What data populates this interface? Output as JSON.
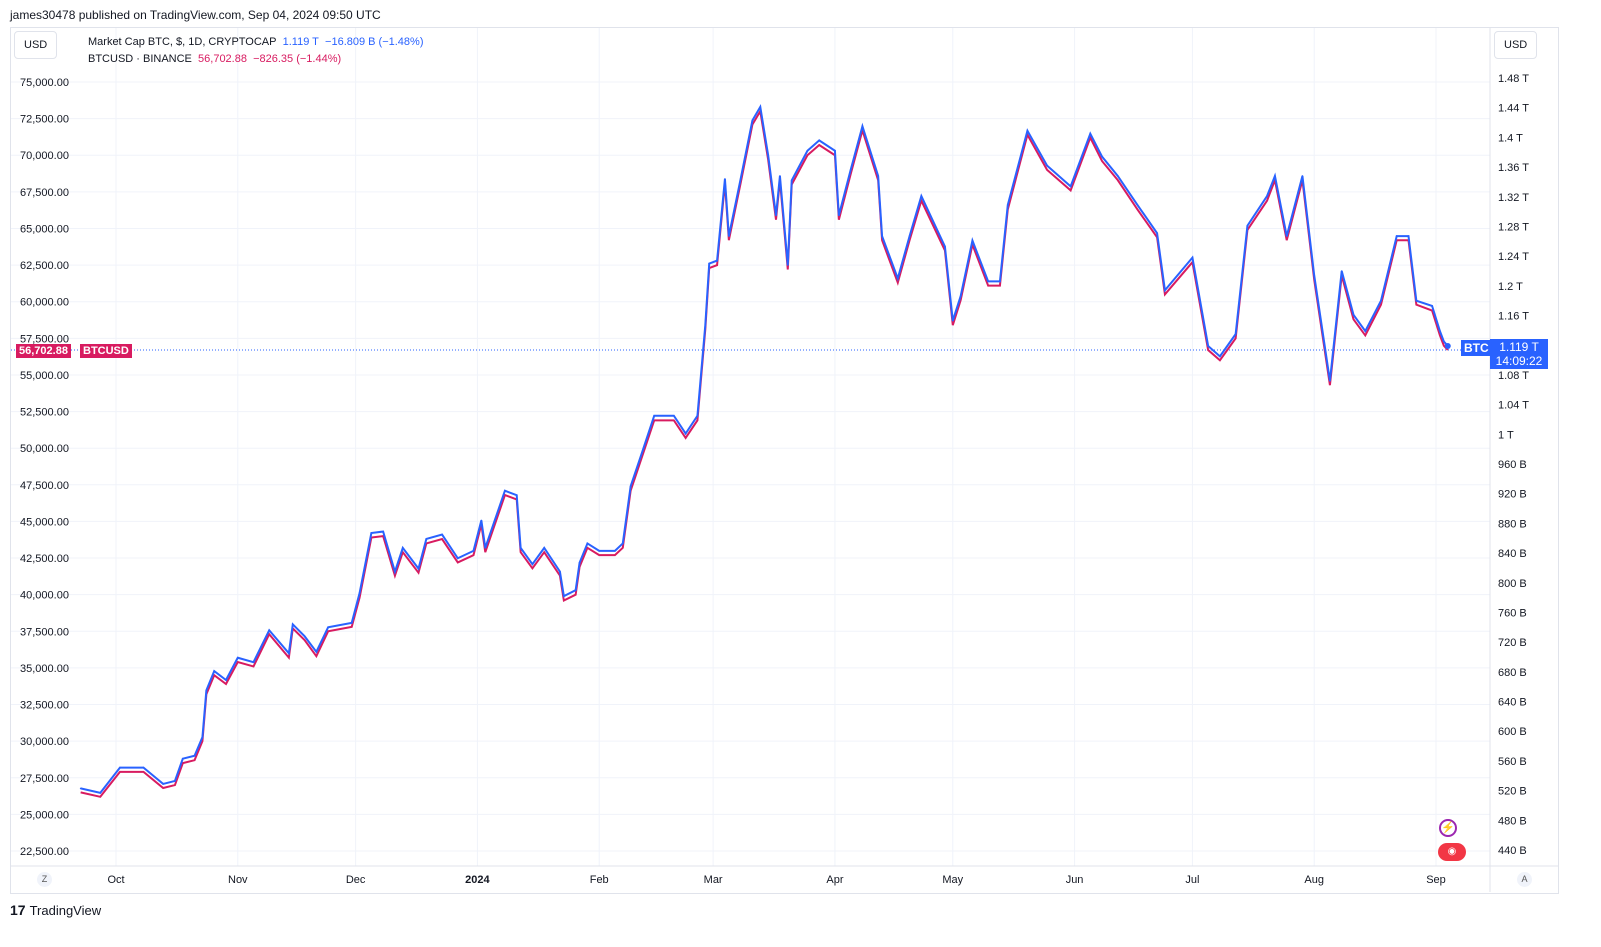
{
  "published": "james30478 published on TradingView.com, Sep 04, 2024 09:50 UTC",
  "left_currency": "USD",
  "right_currency": "USD",
  "legend": {
    "series1_name": "Market Cap BTC, $, 1D, CRYPTOCAP",
    "series1_value": "1.119 T",
    "series1_change": "−16.809 B (−1.48%)",
    "series2_name": "BTCUSD · BINANCE",
    "series2_value": "56,702.88",
    "series2_change": "−826.35 (−1.44%)"
  },
  "price_tag": {
    "value": "56,702.88",
    "symbol": "BTCUSD"
  },
  "cap_tag": {
    "symbol": "BTC",
    "value": "1.119 T",
    "countdown": "14:09:22"
  },
  "footer": {
    "logo": "TradingView",
    "left_button": "Z",
    "right_button": "A"
  },
  "colors": {
    "market_cap": "#2962ff",
    "btcusd": "#d81b60",
    "grid": "#f0f3fa"
  },
  "chart_data": {
    "type": "line",
    "x_ticks": [
      [
        "2023-10-01",
        "Oct"
      ],
      [
        "2023-11-01",
        "Nov"
      ],
      [
        "2023-12-01",
        "Dec"
      ],
      [
        "2024-01-01",
        "2024"
      ],
      [
        "2024-02-01",
        "Feb"
      ],
      [
        "2024-03-01",
        "Mar"
      ],
      [
        "2024-04-01",
        "Apr"
      ],
      [
        "2024-05-01",
        "May"
      ],
      [
        "2024-06-01",
        "Jun"
      ],
      [
        "2024-07-01",
        "Jul"
      ],
      [
        "2024-08-01",
        "Aug"
      ],
      [
        "2024-09-01",
        "Sep"
      ]
    ],
    "left_axis": {
      "unit": "USD",
      "range": [
        22500,
        75000
      ],
      "ticks": [
        "75,000.00",
        "72,500.00",
        "70,000.00",
        "67,500.00",
        "65,000.00",
        "62,500.00",
        "60,000.00",
        "57,500.00",
        "55,000.00",
        "52,500.00",
        "50,000.00",
        "47,500.00",
        "45,000.00",
        "42,500.00",
        "40,000.00",
        "37,500.00",
        "35,000.00",
        "32,500.00",
        "30,000.00",
        "27,500.00",
        "25,000.00",
        "22,500.00"
      ]
    },
    "right_axis": {
      "unit": "USD",
      "range_T": [
        0.44,
        1.48
      ],
      "ticks": [
        "1.48 T",
        "1.44 T",
        "1.4 T",
        "1.36 T",
        "1.32 T",
        "1.28 T",
        "1.24 T",
        "1.2 T",
        "1.16 T",
        "1.12 T",
        "1.08 T",
        "1.04 T",
        "1 T",
        "960 B",
        "920 B",
        "880 B",
        "840 B",
        "800 B",
        "760 B",
        "720 B",
        "680 B",
        "640 B",
        "600 B",
        "560 B",
        "520 B",
        "480 B",
        "440 B"
      ]
    },
    "grid": true,
    "series_columns": [
      "date",
      "BTCUSD",
      "Market Cap BTC (T)"
    ],
    "points": [
      [
        "2023-09-22",
        26500,
        0.523
      ],
      [
        "2023-09-27",
        26200,
        0.517
      ],
      [
        "2023-10-02",
        27900,
        0.551
      ],
      [
        "2023-10-08",
        27900,
        0.551
      ],
      [
        "2023-10-13",
        26800,
        0.529
      ],
      [
        "2023-10-16",
        27000,
        0.533
      ],
      [
        "2023-10-18",
        28500,
        0.563
      ],
      [
        "2023-10-21",
        28700,
        0.567
      ],
      [
        "2023-10-23",
        30000,
        0.592
      ],
      [
        "2023-10-24",
        33200,
        0.655
      ],
      [
        "2023-10-26",
        34500,
        0.681
      ],
      [
        "2023-10-29",
        33900,
        0.669
      ],
      [
        "2023-11-01",
        35400,
        0.699
      ],
      [
        "2023-11-05",
        35100,
        0.693
      ],
      [
        "2023-11-09",
        37300,
        0.736
      ],
      [
        "2023-11-14",
        35700,
        0.705
      ],
      [
        "2023-11-15",
        37700,
        0.744
      ],
      [
        "2023-11-18",
        36900,
        0.728
      ],
      [
        "2023-11-21",
        35800,
        0.707
      ],
      [
        "2023-11-24",
        37500,
        0.74
      ],
      [
        "2023-11-30",
        37800,
        0.746
      ],
      [
        "2023-12-02",
        39800,
        0.786
      ],
      [
        "2023-12-05",
        43900,
        0.867
      ],
      [
        "2023-12-08",
        44000,
        0.869
      ],
      [
        "2023-12-11",
        41300,
        0.815
      ],
      [
        "2023-12-13",
        42900,
        0.847
      ],
      [
        "2023-12-17",
        41500,
        0.819
      ],
      [
        "2023-12-19",
        43500,
        0.859
      ],
      [
        "2023-12-23",
        43800,
        0.865
      ],
      [
        "2023-12-27",
        42200,
        0.833
      ],
      [
        "2023-12-31",
        42700,
        0.843
      ],
      [
        "2024-01-02",
        44800,
        0.884
      ],
      [
        "2024-01-03",
        42900,
        0.847
      ],
      [
        "2024-01-08",
        46800,
        0.924
      ],
      [
        "2024-01-11",
        46500,
        0.918
      ],
      [
        "2024-01-12",
        42900,
        0.847
      ],
      [
        "2024-01-15",
        41800,
        0.825
      ],
      [
        "2024-01-18",
        42900,
        0.847
      ],
      [
        "2024-01-22",
        41300,
        0.815
      ],
      [
        "2024-01-23",
        39600,
        0.782
      ],
      [
        "2024-01-26",
        40000,
        0.79
      ],
      [
        "2024-01-27",
        41900,
        0.827
      ],
      [
        "2024-01-29",
        43200,
        0.853
      ],
      [
        "2024-02-01",
        42700,
        0.843
      ],
      [
        "2024-02-05",
        42700,
        0.843
      ],
      [
        "2024-02-07",
        43200,
        0.853
      ],
      [
        "2024-02-09",
        47100,
        0.93
      ],
      [
        "2024-02-12",
        49500,
        0.977
      ],
      [
        "2024-02-15",
        51900,
        1.025
      ],
      [
        "2024-02-20",
        51900,
        1.025
      ],
      [
        "2024-02-23",
        50700,
        1.001
      ],
      [
        "2024-02-26",
        51900,
        1.025
      ],
      [
        "2024-02-28",
        58100,
        1.147
      ],
      [
        "2024-02-29",
        62300,
        1.23
      ],
      [
        "2024-03-02",
        62500,
        1.234
      ],
      [
        "2024-03-04",
        68100,
        1.344
      ],
      [
        "2024-03-05",
        64200,
        1.267
      ],
      [
        "2024-03-08",
        68100,
        1.344
      ],
      [
        "2024-03-11",
        72100,
        1.423
      ],
      [
        "2024-03-13",
        73000,
        1.441
      ],
      [
        "2024-03-15",
        69700,
        1.376
      ],
      [
        "2024-03-17",
        65600,
        1.295
      ],
      [
        "2024-03-18",
        68300,
        1.348
      ],
      [
        "2024-03-20",
        62200,
        1.228
      ],
      [
        "2024-03-21",
        68000,
        1.342
      ],
      [
        "2024-03-25",
        70000,
        1.382
      ],
      [
        "2024-03-28",
        70700,
        1.396
      ],
      [
        "2024-04-01",
        70000,
        1.382
      ],
      [
        "2024-04-02",
        65600,
        1.295
      ],
      [
        "2024-04-05",
        68700,
        1.356
      ],
      [
        "2024-04-08",
        71700,
        1.415
      ],
      [
        "2024-04-12",
        68300,
        1.348
      ],
      [
        "2024-04-13",
        64200,
        1.267
      ],
      [
        "2024-04-17",
        61300,
        1.21
      ],
      [
        "2024-04-20",
        64200,
        1.267
      ],
      [
        "2024-04-23",
        66900,
        1.321
      ],
      [
        "2024-04-29",
        63500,
        1.253
      ],
      [
        "2024-05-01",
        58400,
        1.153
      ],
      [
        "2024-05-03",
        60100,
        1.186
      ],
      [
        "2024-05-06",
        63900,
        1.261
      ],
      [
        "2024-05-10",
        61100,
        1.206
      ],
      [
        "2024-05-13",
        61100,
        1.206
      ],
      [
        "2024-05-15",
        66300,
        1.309
      ],
      [
        "2024-05-20",
        71400,
        1.409
      ],
      [
        "2024-05-25",
        69000,
        1.362
      ],
      [
        "2024-05-31",
        67600,
        1.334
      ],
      [
        "2024-06-05",
        71200,
        1.405
      ],
      [
        "2024-06-08",
        69600,
        1.374
      ],
      [
        "2024-06-12",
        68300,
        1.348
      ],
      [
        "2024-06-17",
        66300,
        1.309
      ],
      [
        "2024-06-22",
        64400,
        1.271
      ],
      [
        "2024-06-24",
        60500,
        1.194
      ],
      [
        "2024-07-01",
        62700,
        1.238
      ],
      [
        "2024-07-05",
        56700,
        1.119
      ],
      [
        "2024-07-08",
        56000,
        1.105
      ],
      [
        "2024-07-12",
        57500,
        1.135
      ],
      [
        "2024-07-15",
        64900,
        1.281
      ],
      [
        "2024-07-20",
        66900,
        1.321
      ],
      [
        "2024-07-22",
        68300,
        1.348
      ],
      [
        "2024-07-25",
        64200,
        1.267
      ],
      [
        "2024-07-29",
        68300,
        1.348
      ],
      [
        "2024-08-01",
        61500,
        1.214
      ],
      [
        "2024-08-05",
        54300,
        1.072
      ],
      [
        "2024-08-08",
        61800,
        1.22
      ],
      [
        "2024-08-11",
        58800,
        1.161
      ],
      [
        "2024-08-14",
        57700,
        1.139
      ],
      [
        "2024-08-18",
        59800,
        1.18
      ],
      [
        "2024-08-22",
        64200,
        1.267
      ],
      [
        "2024-08-25",
        64200,
        1.267
      ],
      [
        "2024-08-27",
        59800,
        1.18
      ],
      [
        "2024-08-31",
        59400,
        1.173
      ],
      [
        "2024-09-02",
        57700,
        1.139
      ],
      [
        "2024-09-03",
        57000,
        1.125
      ],
      [
        "2024-09-04",
        56702.88,
        1.119
      ]
    ]
  }
}
